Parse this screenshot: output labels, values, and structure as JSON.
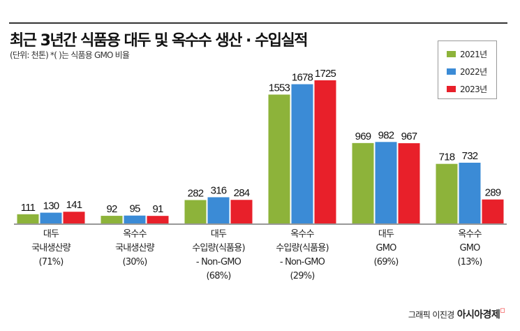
{
  "header": {
    "title": "최근 3년간 식품용 대두 및 옥수수 생산 · 수입실적",
    "subtitle": "(단위: 천톤)  *(  )는 식품용 GMO 비율"
  },
  "credit": {
    "author": "그래픽 이진경",
    "brand": "아시아경제"
  },
  "chart_data": {
    "type": "bar",
    "title": "최근 3년간 식품용 대두 및 옥수수 생산 · 수입실적",
    "ylabel": "천톤",
    "ylim": [
      0,
      1725
    ],
    "grid": false,
    "legend_position": "top-right",
    "categories": [
      [
        "대두",
        "국내생산량",
        "(71%)"
      ],
      [
        "옥수수",
        "국내생산량",
        "(30%)"
      ],
      [
        "대두",
        "수입량(식품용)",
        "- Non-GMO",
        "(68%)"
      ],
      [
        "옥수수",
        "수입량(식품용)",
        "- Non-GMO",
        "(29%)"
      ],
      [
        "대두",
        "GMO",
        "(69%)"
      ],
      [
        "옥수수",
        "GMO",
        "(13%)"
      ]
    ],
    "series": [
      {
        "name": "2021년",
        "color": "#8db33a",
        "values": [
          111,
          92,
          282,
          1553,
          969,
          718
        ]
      },
      {
        "name": "2022년",
        "color": "#3b8bd6",
        "values": [
          130,
          95,
          316,
          1678,
          982,
          732
        ]
      },
      {
        "name": "2023년",
        "color": "#e8202a",
        "values": [
          141,
          91,
          284,
          1725,
          967,
          289
        ]
      }
    ]
  }
}
